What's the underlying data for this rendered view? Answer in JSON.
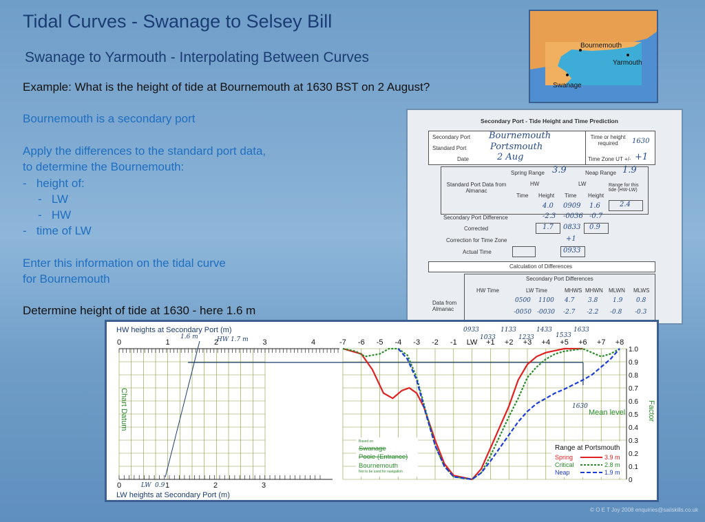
{
  "title": "Tidal Curves - Swanage to Selsey Bill",
  "subtitle": "Swanage to Yarmouth - Interpolating Between Curves",
  "example": "Example:  What is the height of tide at Bournemouth at 1630 BST on 2 August?",
  "instructions": {
    "line1": "Bournemouth is a secondary port",
    "line2": "Apply the differences to the standard port data,",
    "line3": "to determine the Bournemouth:",
    "line4": "-   height of:",
    "line5": "-   LW",
    "line6": "-   HW",
    "line7": "-   time of LW",
    "line8": "Enter this information on the tidal curve",
    "line9": "for Bournemouth"
  },
  "determine": "Determine height of tide at 1630 - here 1.6 m",
  "map": {
    "places": [
      "Bournemouth",
      "Yarmouth",
      "Swanage"
    ],
    "colors": {
      "land": "#e8a050",
      "sea": "#4f8ed0",
      "inset": "#3bb0d8"
    }
  },
  "table": {
    "heading": "Secondary Port - Tide Height and Time Prediction",
    "secondary_port_label": "Secondary Port",
    "secondary_port": "Bournemouth",
    "standard_port_label": "Standard Port",
    "standard_port": "Portsmouth",
    "date_label": "Date",
    "date": "2 Aug",
    "time_or_height_label": "Time or height required",
    "time_required": "1630",
    "time_zone_label": "Time Zone UT +/-",
    "time_zone": "+1",
    "spring_range_label": "Spring Range",
    "spring_range": "3.9",
    "neap_range_label": "Neap Range",
    "neap_range": "1.9",
    "std_port_data_label": "Standard Port Data from Almanac",
    "hw": "HW",
    "lw": "LW",
    "time": "Time",
    "height": "Height",
    "range_label": "Range for this tide (HW-LW)",
    "std_hw_height": "4.0",
    "std_lw_time": "0909",
    "std_lw_height": "1.6",
    "range": "2.4",
    "diff_label": "Secondary Port Difference",
    "diff_hw_height": "-2.3",
    "diff_lw_time": "-0036",
    "diff_lw_height": "-0.7",
    "corrected_label": "Corrected",
    "corr_hw_height": "1.7",
    "corr_lw_time": "0833",
    "corr_lw_height": "0.9",
    "correction_tz_label": "Correction for Time Zone",
    "correction_tz": "+1",
    "actual_time_label": "Actual Time",
    "actual_time": "0933",
    "calc_label": "Calculation of Differences",
    "spd_label": "Secondary Port Differences",
    "hw_time_label": "HW Time",
    "lw_time_label": "LW Time",
    "mhws": "MHWS",
    "mhwn": "MHWN",
    "mlwn": "MLWN",
    "mlws": "MLWS",
    "almanac_label": "Data from Almanac",
    "row1": [
      "0500",
      "1100",
      "4.7",
      "3.8",
      "1.9",
      "0.8"
    ],
    "row2": [
      "-0050",
      "-0030",
      "-2.7",
      "-2.2",
      "-0.8",
      "-0.3"
    ]
  },
  "chart": {
    "hw_axis_label": "HW heights at Secondary Port (m)",
    "lw_axis_label": "LW heights at Secondary Port (m)",
    "chart_datum": "Chart Datum",
    "factor": "Factor",
    "mean_level": "Mean level",
    "hw_ticks": [
      "0",
      "1",
      "2",
      "3",
      "4"
    ],
    "lw_ticks": [
      "0",
      "1",
      "2",
      "3"
    ],
    "hour_ticks": [
      "-7",
      "-6",
      "-5",
      "-4",
      "-3",
      "-2",
      "-1",
      "LW",
      "+1",
      "+2",
      "+3",
      "+4",
      "+5",
      "+6",
      "+7",
      "+8"
    ],
    "factor_ticks": [
      "1.0",
      "0.9",
      "0.8",
      "0.7",
      "0.6",
      "0.5",
      "0.4",
      "0.3",
      "0.2",
      "0.1",
      "0"
    ],
    "time_annotations_top": [
      "0933",
      "1133",
      "1433",
      "1633"
    ],
    "time_annotations_bottom": [
      "1033",
      "1233",
      "1533"
    ],
    "hw_note_a": "1.6 m",
    "hw_note_b": "HW 1.7 m",
    "lw_note": "LW",
    "lw_value": "0.9",
    "time_1630": "1630",
    "ports": {
      "based_on": "Based on",
      "swanage": "Swanage",
      "poole": "Poole (Entrance)",
      "bournemouth": "Bournemouth",
      "note": "Not to be used for navigation"
    },
    "legend": {
      "title": "Range at Portsmouth",
      "items": [
        {
          "name": "Spring",
          "value": "3.9 m",
          "color": "#e02020"
        },
        {
          "name": "Critical",
          "value": "2.8 m",
          "color": "#2a8a2a"
        },
        {
          "name": "Neap",
          "value": "1.9 m",
          "color": "#1a3cd8"
        }
      ]
    }
  },
  "footer": "© O E T Joy 2008 enquiries@sailskills.co.uk"
}
